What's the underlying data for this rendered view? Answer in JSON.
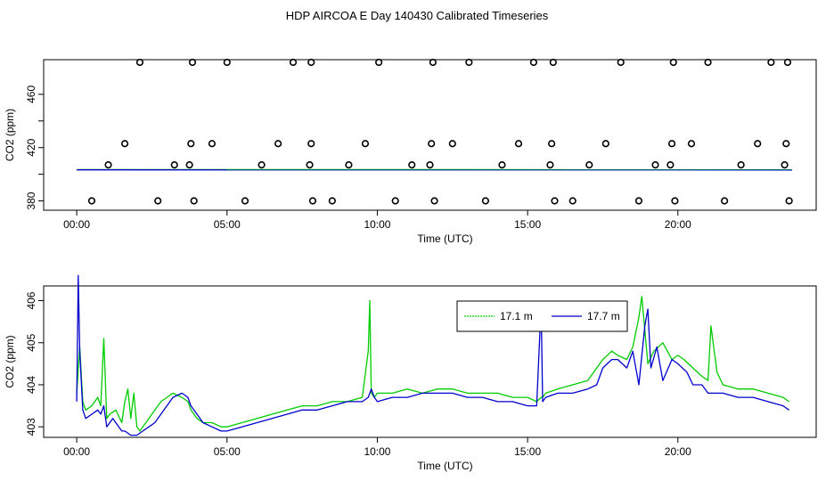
{
  "title": "HDP AIRCOA E  Day 140430  Calibrated Timeseries",
  "colors": {
    "green": "#00cc00",
    "blue": "#0000cc",
    "black": "#000000"
  },
  "chart_data": [
    {
      "type": "scatter",
      "xlabel": "Time (UTC)",
      "ylabel": "CO2 (ppm)",
      "xlim": [
        -1.1,
        24.6
      ],
      "ylim": [
        373,
        486
      ],
      "xticks": [
        0,
        5,
        10,
        15,
        20
      ],
      "xticklabels": [
        "00:00",
        "05:00",
        "10:00",
        "15:00",
        "20:00"
      ],
      "yticks": [
        380,
        420,
        460
      ],
      "yticklabels": [
        "380",
        "420",
        "460"
      ],
      "grid": false,
      "series": [
        {
          "style": "circles",
          "color": "#000000",
          "x": [
            0.5,
            1.05,
            1.6,
            2.1,
            2.7,
            3.25,
            3.75,
            3.8,
            3.85,
            3.9,
            4.5,
            5.0,
            5.6,
            6.15,
            6.7,
            7.2,
            7.75,
            7.8,
            7.8,
            7.85,
            8.5,
            9.05,
            9.6,
            10.05,
            10.6,
            11.15,
            11.75,
            11.8,
            11.85,
            11.9,
            12.5,
            13.05,
            13.6,
            14.15,
            14.7,
            15.2,
            15.75,
            15.8,
            15.85,
            15.9,
            16.5,
            17.05,
            17.6,
            18.1,
            18.7,
            19.25,
            19.75,
            19.8,
            19.85,
            19.9,
            20.45,
            21.0,
            21.55,
            22.1,
            22.65,
            23.1,
            23.55,
            23.6,
            23.65,
            23.7
          ],
          "y": [
            380,
            407,
            423,
            484,
            380,
            407,
            407,
            423,
            484,
            380,
            423,
            484,
            380,
            407,
            423,
            484,
            407,
            423,
            484,
            380,
            380,
            407,
            423,
            484,
            380,
            407,
            407,
            423,
            484,
            380,
            423,
            484,
            380,
            407,
            423,
            484,
            407,
            423,
            484,
            380,
            380,
            407,
            423,
            484,
            380,
            407,
            407,
            423,
            484,
            380,
            423,
            484,
            380,
            407,
            423,
            484,
            407,
            423,
            484,
            380
          ]
        },
        {
          "style": "line",
          "color": "#00cc00",
          "x": [
            0,
            23.8
          ],
          "y": [
            403.5,
            403.4
          ]
        },
        {
          "style": "line",
          "color": "#0000cc",
          "x": [
            0,
            23.8
          ],
          "y": [
            403.3,
            403.2
          ]
        }
      ]
    },
    {
      "type": "line",
      "xlabel": "Time (UTC)",
      "ylabel": "CO2 (ppm)",
      "xlim": [
        -1.1,
        24.6
      ],
      "ylim": [
        402.75,
        406.35
      ],
      "xticks": [
        0,
        5,
        10,
        15,
        20
      ],
      "xticklabels": [
        "00:00",
        "05:00",
        "10:00",
        "15:00",
        "20:00"
      ],
      "yticks": [
        403,
        404,
        405,
        406
      ],
      "yticklabels": [
        "403",
        "404",
        "405",
        "406"
      ],
      "grid": false,
      "legend": "top-right",
      "series": [
        {
          "name": "17.1 m",
          "color": "#00cc00",
          "x": [
            0,
            0.1,
            0.2,
            0.3,
            0.5,
            0.7,
            0.8,
            0.9,
            1.0,
            1.1,
            1.3,
            1.5,
            1.6,
            1.7,
            1.8,
            1.9,
            2.0,
            2.1,
            2.2,
            2.4,
            2.6,
            2.8,
            3.0,
            3.2,
            3.5,
            3.7,
            3.8,
            4.0,
            4.2,
            4.5,
            4.8,
            5.0,
            5.5,
            6.0,
            6.5,
            7.0,
            7.5,
            8.0,
            8.5,
            9.0,
            9.5,
            9.7,
            9.75,
            9.8,
            9.9,
            10.0,
            10.5,
            11.0,
            11.5,
            12.0,
            12.5,
            13.0,
            13.5,
            14.0,
            14.5,
            15.0,
            15.3,
            15.45,
            15.5,
            15.6,
            16.0,
            16.5,
            17.0,
            17.3,
            17.5,
            17.8,
            18.0,
            18.3,
            18.5,
            18.7,
            18.8,
            19.0,
            19.2,
            19.5,
            19.8,
            20.0,
            20.2,
            20.5,
            20.8,
            21.0,
            21.1,
            21.3,
            21.5,
            22.0,
            22.5,
            23.0,
            23.5,
            23.7
          ],
          "y": [
            403.8,
            404.9,
            403.6,
            403.4,
            403.5,
            403.7,
            403.5,
            405.1,
            403.2,
            403.3,
            403.4,
            403.1,
            403.6,
            403.9,
            403.2,
            403.8,
            403.0,
            402.9,
            403.0,
            403.2,
            403.4,
            403.6,
            403.7,
            403.8,
            403.7,
            403.6,
            403.4,
            403.2,
            403.1,
            403.1,
            403.0,
            403.0,
            403.1,
            403.2,
            403.3,
            403.4,
            403.5,
            403.5,
            403.6,
            403.6,
            403.7,
            404.8,
            406.0,
            403.8,
            403.7,
            403.8,
            403.8,
            403.9,
            403.8,
            403.9,
            403.9,
            403.8,
            403.8,
            403.8,
            403.7,
            403.7,
            403.6,
            403.7,
            403.7,
            403.8,
            403.9,
            404.0,
            404.1,
            404.4,
            404.6,
            404.8,
            404.7,
            404.6,
            404.9,
            405.6,
            406.1,
            404.5,
            404.8,
            405.0,
            404.6,
            404.7,
            404.6,
            404.4,
            404.2,
            404.1,
            405.4,
            404.3,
            404.0,
            403.9,
            403.9,
            403.8,
            403.7,
            403.6
          ]
        },
        {
          "name": "17.7 m",
          "color": "#0000cc",
          "x": [
            0,
            0.05,
            0.1,
            0.2,
            0.3,
            0.5,
            0.7,
            0.8,
            0.9,
            1.0,
            1.2,
            1.4,
            1.5,
            1.6,
            1.8,
            2.0,
            2.2,
            2.4,
            2.6,
            2.8,
            3.0,
            3.2,
            3.5,
            3.7,
            3.8,
            4.0,
            4.2,
            4.5,
            4.8,
            5.0,
            5.5,
            6.0,
            6.5,
            7.0,
            7.5,
            8.0,
            8.5,
            9.0,
            9.5,
            9.7,
            9.8,
            9.9,
            10.0,
            10.5,
            11.0,
            11.5,
            12.0,
            12.5,
            13.0,
            13.5,
            14.0,
            14.5,
            15.0,
            15.3,
            15.45,
            15.5,
            15.6,
            16.0,
            16.5,
            17.0,
            17.3,
            17.5,
            17.8,
            18.0,
            18.3,
            18.5,
            18.7,
            18.9,
            19.0,
            19.1,
            19.3,
            19.5,
            19.8,
            20.0,
            20.3,
            20.5,
            20.8,
            21.0,
            21.5,
            22.0,
            22.5,
            23.0,
            23.5,
            23.7
          ],
          "y": [
            403.6,
            406.6,
            404.8,
            403.4,
            403.2,
            403.3,
            403.4,
            403.3,
            403.5,
            403.0,
            403.2,
            403.0,
            402.9,
            402.9,
            402.8,
            402.8,
            402.9,
            403.0,
            403.1,
            403.3,
            403.5,
            403.7,
            403.8,
            403.7,
            403.5,
            403.3,
            403.1,
            403.0,
            402.9,
            402.9,
            403.0,
            403.1,
            403.2,
            403.3,
            403.4,
            403.4,
            403.5,
            403.6,
            403.6,
            403.7,
            403.9,
            403.7,
            403.6,
            403.7,
            403.7,
            403.8,
            403.8,
            403.8,
            403.7,
            403.7,
            403.6,
            403.6,
            403.5,
            403.5,
            405.9,
            403.6,
            403.7,
            403.8,
            403.8,
            403.9,
            404.0,
            404.4,
            404.6,
            404.6,
            404.4,
            404.8,
            404.0,
            405.4,
            405.8,
            404.4,
            404.9,
            404.1,
            404.6,
            404.5,
            404.3,
            404.0,
            404.0,
            403.8,
            403.8,
            403.7,
            403.7,
            403.6,
            403.5,
            403.4
          ]
        }
      ]
    }
  ]
}
